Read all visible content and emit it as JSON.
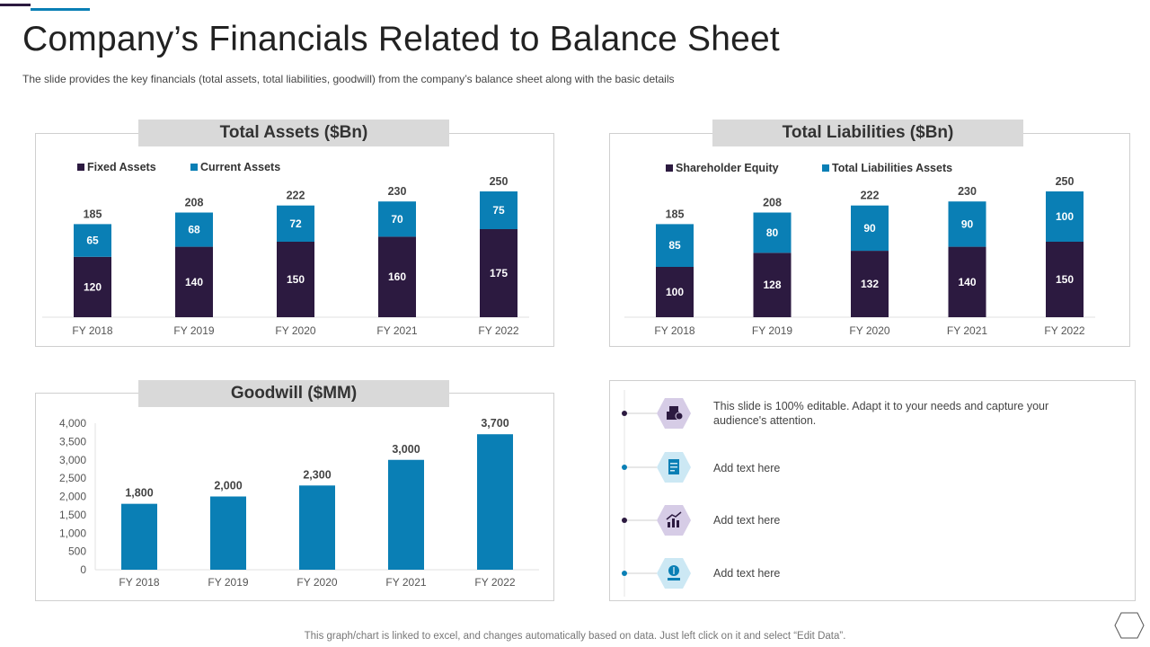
{
  "slide": {
    "title": "Company’s Financials Related to Balance Sheet",
    "subtitle": "The slide provides  the key financials (total assets, total liabilities, goodwill) from the company’s balance sheet along with the basic details",
    "footer": "This graph/chart is linked to excel,  and changes automatically based on data. Just left click on it and select “Edit Data”."
  },
  "colors": {
    "dark": "#2c1a40",
    "blue": "#0a7fb5",
    "header_bg": "#d9d9d9"
  },
  "chart_data": [
    {
      "id": "assets",
      "type": "bar",
      "stacked": true,
      "title": "Total Assets ($Bn)",
      "categories": [
        "FY 2018",
        "FY 2019",
        "FY 2020",
        "FY 2021",
        "FY 2022"
      ],
      "series": [
        {
          "name": "Fixed Assets",
          "color": "#2c1a40",
          "values": [
            120,
            140,
            150,
            160,
            175
          ]
        },
        {
          "name": "Current Assets",
          "color": "#0a7fb5",
          "values": [
            65,
            68,
            72,
            70,
            75
          ]
        }
      ],
      "totals": [
        185,
        208,
        222,
        230,
        250
      ],
      "ylim": [
        0,
        250
      ]
    },
    {
      "id": "liabilities",
      "type": "bar",
      "stacked": true,
      "title": "Total Liabilities ($Bn)",
      "categories": [
        "FY 2018",
        "FY 2019",
        "FY 2020",
        "FY 2021",
        "FY 2022"
      ],
      "series": [
        {
          "name": "Shareholder Equity",
          "color": "#2c1a40",
          "values": [
            100,
            128,
            132,
            140,
            150
          ]
        },
        {
          "name": "Total Liabilities Assets",
          "color": "#0a7fb5",
          "values": [
            85,
            80,
            90,
            90,
            100
          ]
        }
      ],
      "totals": [
        185,
        208,
        222,
        230,
        250
      ],
      "ylim": [
        0,
        250
      ]
    },
    {
      "id": "goodwill",
      "type": "bar",
      "title": "Goodwill ($MM)",
      "categories": [
        "FY 2018",
        "FY 2019",
        "FY 2020",
        "FY 2021",
        "FY 2022"
      ],
      "values": [
        1800,
        2000,
        2300,
        3000,
        3700
      ],
      "labels": [
        "1,800",
        "2,000",
        "2,300",
        "3,000",
        "3,700"
      ],
      "color": "#0a7fb5",
      "ylim": [
        0,
        4000
      ],
      "yticks": [
        "0",
        "500",
        "1,000",
        "1,500",
        "2,000",
        "2,500",
        "3,000",
        "3,500",
        "4,000"
      ]
    }
  ],
  "notes": {
    "items": [
      {
        "text": "This slide is 100% editable. Adapt it to your needs and capture your audience's attention.",
        "icon": "money-bag-icon",
        "hex_color": "#d6cce6",
        "dot_color": "#2c1a40"
      },
      {
        "text": "Add text here",
        "icon": "document-icon",
        "hex_color": "#cce8f4",
        "dot_color": "#0a7fb5"
      },
      {
        "text": "Add text here",
        "icon": "growth-chart-icon",
        "hex_color": "#d6cce6",
        "dot_color": "#2c1a40"
      },
      {
        "text": "Add text here",
        "icon": "dollar-hand-icon",
        "hex_color": "#cce8f4",
        "dot_color": "#0a7fb5"
      }
    ]
  }
}
